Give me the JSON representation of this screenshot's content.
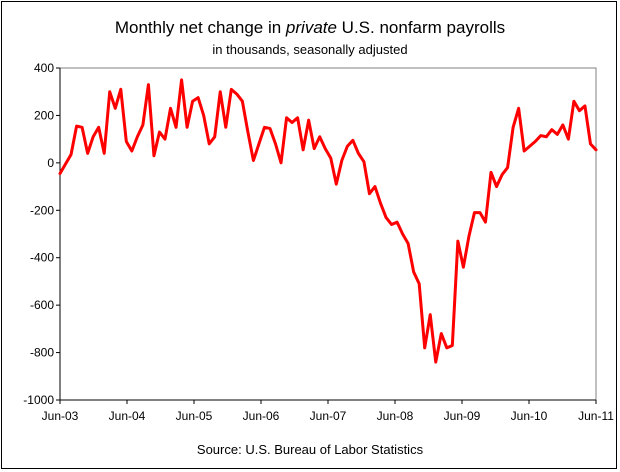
{
  "chart_data": {
    "type": "line",
    "title_prefix": "Monthly net change in ",
    "title_italic": "private",
    "title_suffix": " U.S. nonfarm payrolls",
    "subtitle": "in thousands, seasonally adjusted",
    "source": "Source: U.S. Bureau of Labor Statistics",
    "xlabel": "",
    "ylabel": "",
    "ylim": [
      -1000,
      400
    ],
    "yticks": [
      "400",
      "200",
      "0",
      "-200",
      "-400",
      "-600",
      "-800",
      "-1000"
    ],
    "xticks": [
      "Jun-03",
      "Jun-04",
      "Jun-05",
      "Jun-06",
      "Jun-07",
      "Jun-08",
      "Jun-09",
      "Jun-10",
      "Jun-11"
    ],
    "grid": true,
    "line_color": "#ff0000",
    "x_start": "Jun-03",
    "x_end": "Jun-11",
    "series": [
      {
        "values": [
          -45,
          -5,
          35,
          155,
          150,
          40,
          110,
          150,
          40,
          300,
          230,
          310,
          90,
          50,
          110,
          160,
          330,
          30,
          130,
          100,
          230,
          150,
          350,
          150,
          260,
          275,
          200,
          80,
          110,
          300,
          150,
          310,
          290,
          260,
          130,
          10,
          80,
          150,
          145,
          80,
          0,
          190,
          170,
          190,
          55,
          180,
          60,
          110,
          60,
          20,
          -90,
          10,
          70,
          95,
          40,
          5,
          -130,
          -100,
          -170,
          -230,
          -260,
          -250,
          -300,
          -340,
          -460,
          -510,
          -780,
          -640,
          -840,
          -720,
          -780,
          -770,
          -330,
          -440,
          -310,
          -210,
          -210,
          -250,
          -40,
          -100,
          -50,
          -20,
          150,
          230,
          50,
          70,
          90,
          115,
          110,
          140,
          120,
          160,
          100,
          260,
          220,
          240,
          80,
          55
        ]
      }
    ]
  }
}
